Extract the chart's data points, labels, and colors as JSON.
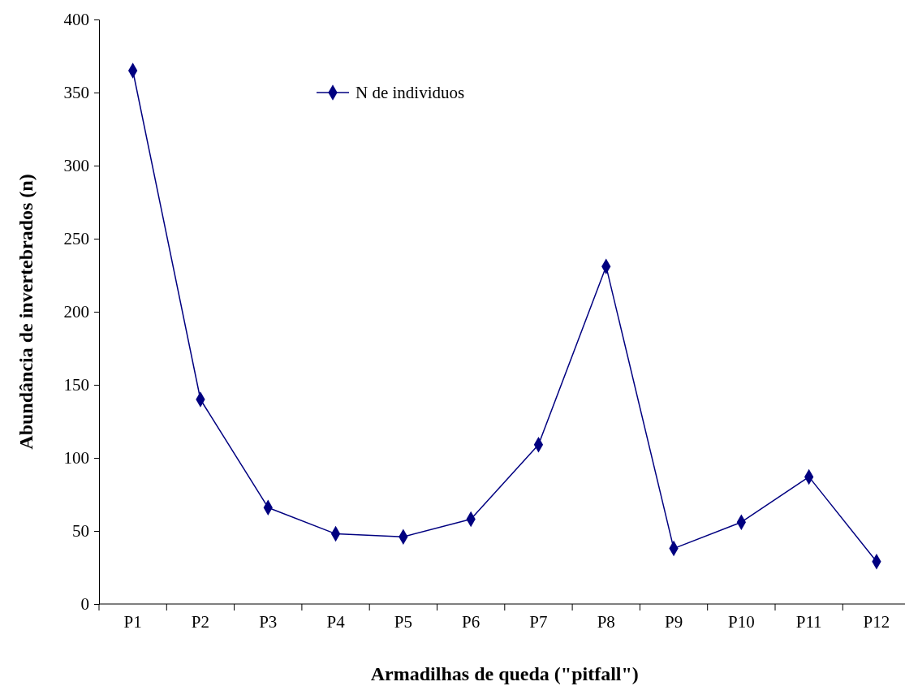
{
  "chart_data": {
    "type": "line",
    "xlabel": "Armadilhas de queda (\"pitfall\")",
    "ylabel": "Abundância de invertebrados (n)",
    "categories": [
      "P1",
      "P2",
      "P3",
      "P4",
      "P5",
      "P6",
      "P7",
      "P8",
      "P9",
      "P10",
      "P11",
      "P12"
    ],
    "series": [
      {
        "name": "N de individuos",
        "color": "#000080",
        "values": [
          365,
          140,
          66,
          48,
          46,
          58,
          109,
          231,
          38,
          56,
          87,
          29
        ]
      }
    ],
    "ylim": [
      0,
      400
    ],
    "yticks": [
      0,
      50,
      100,
      150,
      200,
      250,
      300,
      350,
      400
    ],
    "grid": false,
    "legend": "top",
    "marker": "diamond",
    "line_style": "solid"
  }
}
